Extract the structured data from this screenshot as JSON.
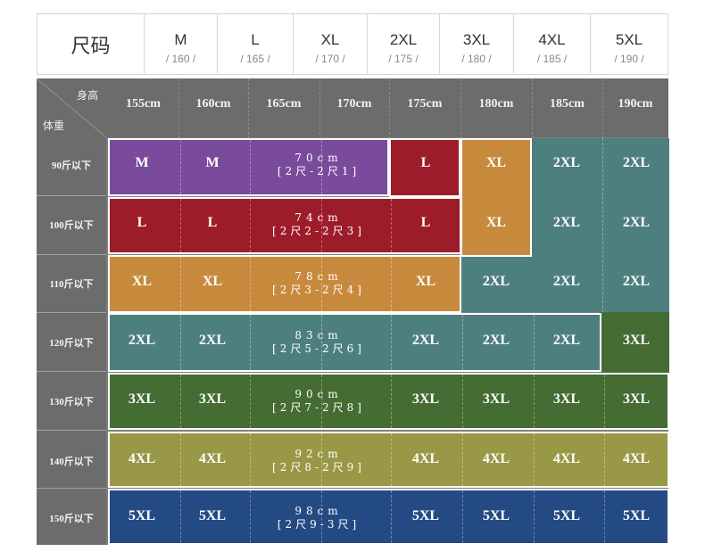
{
  "header": {
    "title": "尺码",
    "sizes": [
      {
        "size": "M",
        "height": "/ 160 /"
      },
      {
        "size": "L",
        "height": "/ 165 /"
      },
      {
        "size": "XL",
        "height": "/ 170 /"
      },
      {
        "size": "2XL",
        "height": "/ 175 /"
      },
      {
        "size": "3XL",
        "height": "/ 180 /"
      },
      {
        "size": "4XL",
        "height": "/ 185 /"
      },
      {
        "size": "5XL",
        "height": "/ 190 /"
      }
    ]
  },
  "table": {
    "height_label": "身高",
    "weight_label": "体重",
    "heights": [
      "155cm",
      "160cm",
      "165cm",
      "170cm",
      "175cm",
      "180cm",
      "185cm",
      "190cm"
    ],
    "weights": [
      "90斤以下",
      "100斤以下",
      "110斤以下",
      "120斤以下",
      "130斤以下",
      "140斤以下",
      "150斤以下"
    ],
    "cells": [
      [
        "M",
        "M",
        "",
        "",
        "L",
        "XL",
        "2XL",
        "2XL"
      ],
      [
        "L",
        "L",
        "",
        "",
        "L",
        "XL",
        "2XL",
        "2XL"
      ],
      [
        "XL",
        "XL",
        "",
        "",
        "XL",
        "2XL",
        "2XL",
        "2XL"
      ],
      [
        "2XL",
        "2XL",
        "",
        "",
        "2XL",
        "2XL",
        "2XL",
        "3XL"
      ],
      [
        "3XL",
        "3XL",
        "",
        "",
        "3XL",
        "3XL",
        "3XL",
        "3XL"
      ],
      [
        "4XL",
        "4XL",
        "",
        "",
        "4XL",
        "4XL",
        "4XL",
        "4XL"
      ],
      [
        "5XL",
        "5XL",
        "",
        "",
        "5XL",
        "5XL",
        "5XL",
        "5XL"
      ]
    ],
    "measurements": [
      {
        "length": "70cm",
        "range": "[2尺-2尺1]"
      },
      {
        "length": "74cm",
        "range": "[2尺2-2尺3]"
      },
      {
        "length": "78cm",
        "range": "[2尺3-2尺4]"
      },
      {
        "length": "83cm",
        "range": "[2尺5-2尺6]"
      },
      {
        "length": "90cm",
        "range": "[2尺7-2尺8]"
      },
      {
        "length": "92cm",
        "range": "[2尺8-2尺9]"
      },
      {
        "length": "98cm",
        "range": "[2尺9-3尺]"
      }
    ]
  },
  "colors": {
    "M": "#7a4a9c",
    "L": "#9d1c2a",
    "XL": "#c78a3d",
    "2XL": "#4e7f7f",
    "3XL": "#456c33",
    "4XL": "#999846",
    "5XL": "#244a84"
  }
}
